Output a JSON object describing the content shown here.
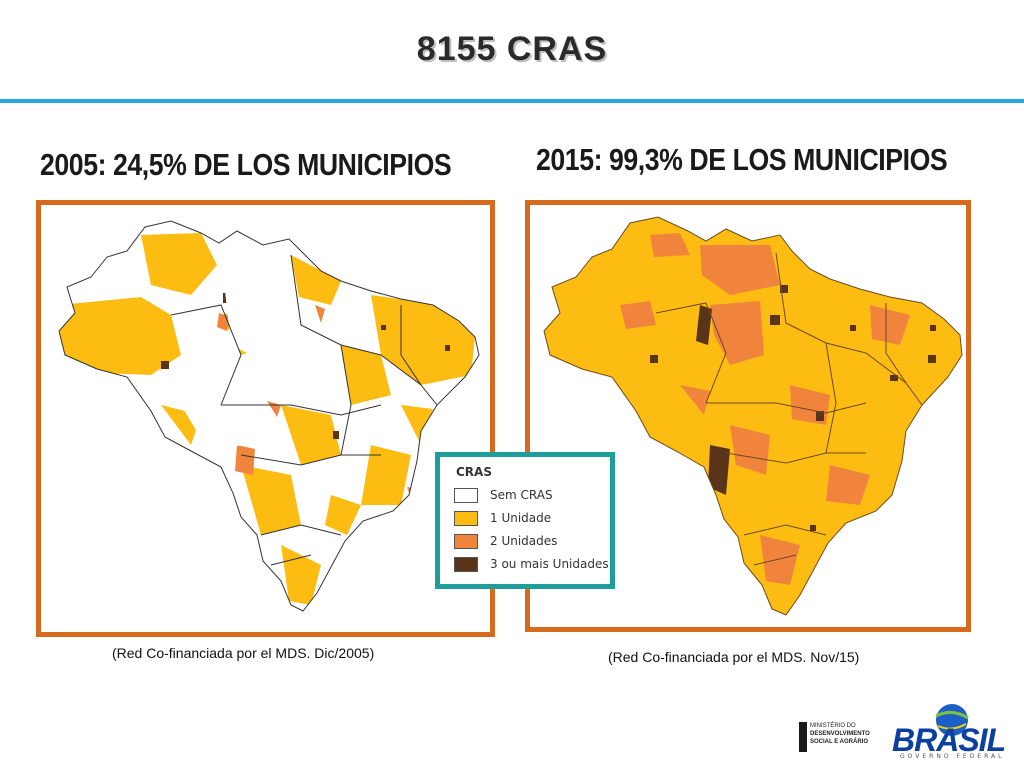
{
  "title": "8155 CRAS",
  "left_panel": {
    "heading": "2005: 24,5% DE LOS MUNICIPIOS",
    "caption": "(Red Co-financiada por el MDS. Dic/2005)"
  },
  "right_panel": {
    "heading": "2015: 99,3% DE LOS MUNICIPIOS",
    "caption": "(Red Co-financiada por el MDS. Nov/15)"
  },
  "legend": {
    "title": "CRAS",
    "items": [
      {
        "label": "Sem CRAS",
        "color": "#ffffff"
      },
      {
        "label": "1 Unidade",
        "color": "#fcbc12"
      },
      {
        "label": "2 Unidades",
        "color": "#f0843c"
      },
      {
        "label": "3 ou mais Unidades",
        "color": "#5a3418"
      }
    ]
  },
  "colors": {
    "frame": "#d66a1f",
    "legend_border": "#1e9e9a",
    "rule": "#29a8e0"
  },
  "logos": {
    "ministry_lines": [
      "MINISTÉRIO DO",
      "DESENVOLVIMENTO",
      "SOCIAL E AGRÁRIO"
    ],
    "brand_word": "BRASIL",
    "brand_sub": "GOVERNO FEDERAL"
  }
}
